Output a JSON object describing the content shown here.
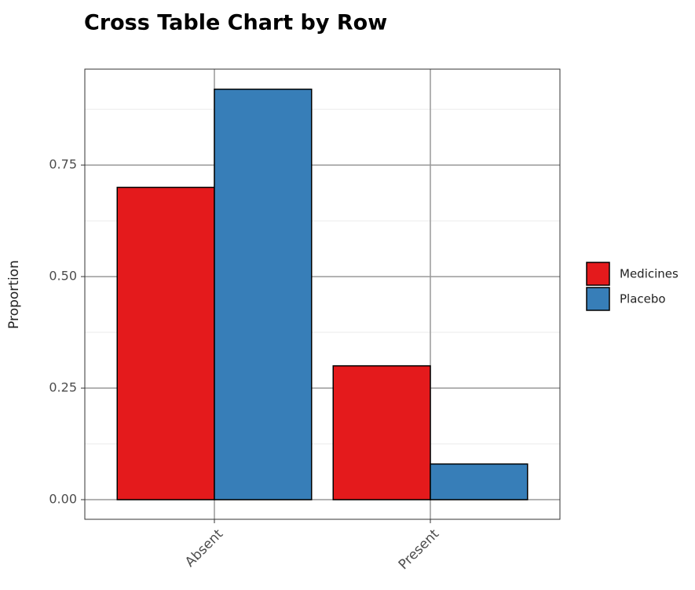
{
  "chart_data": {
    "type": "bar",
    "title": "Cross Table Chart by Row",
    "y_label": "Proportion",
    "categories": [
      "Absent",
      "Present"
    ],
    "series": [
      {
        "name": "Medicines",
        "color": "#e41a1c",
        "values": [
          0.7,
          0.3
        ]
      },
      {
        "name": "Placebo",
        "color": "#377eb8",
        "values": [
          0.92,
          0.08
        ]
      }
    ],
    "ylim": [
      -0.044,
      0.965
    ],
    "yticks": [
      {
        "value": 0,
        "label": "0.00"
      },
      {
        "value": 0.25,
        "label": "0.25"
      },
      {
        "value": 0.5,
        "label": "0.50"
      },
      {
        "value": 0.75,
        "label": "0.75"
      }
    ],
    "minor_yticks": [
      0.125,
      0.375,
      0.625,
      0.875
    ],
    "grid": true,
    "legend": "right"
  }
}
